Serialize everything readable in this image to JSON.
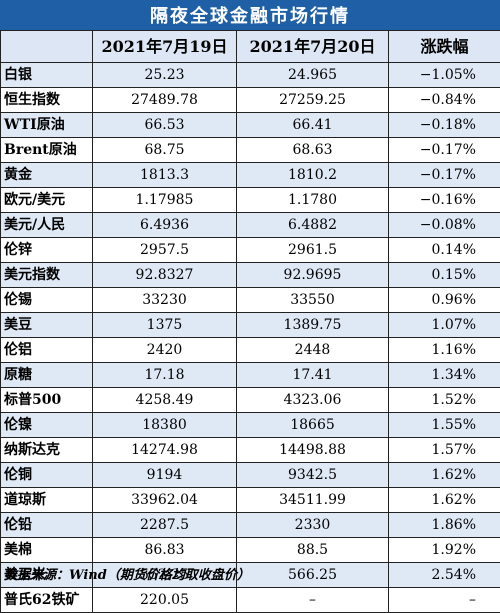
{
  "title": "隔夜全球金融市场行情",
  "columns": [
    "",
    "2021年7月19日",
    "2021年7月20日",
    "涨跌幅"
  ],
  "rows": [
    {
      "name": "白银",
      "d1": "25.23",
      "d2": "24.965",
      "chg": "−1.05%"
    },
    {
      "name": "恒生指数",
      "d1": "27489.78",
      "d2": "27259.25",
      "chg": "−0.84%"
    },
    {
      "name": "WTI原油",
      "d1": "66.53",
      "d2": "66.41",
      "chg": "−0.18%"
    },
    {
      "name": "Brent原油",
      "d1": "68.75",
      "d2": "68.63",
      "chg": "−0.17%"
    },
    {
      "name": "黄金",
      "d1": "1813.3",
      "d2": "1810.2",
      "chg": "−0.17%"
    },
    {
      "name": "欧元/美元",
      "d1": "1.17985",
      "d2": "1.1780",
      "chg": "−0.16%"
    },
    {
      "name": "美元/人民",
      "d1": "6.4936",
      "d2": "6.4882",
      "chg": "−0.08%"
    },
    {
      "name": "伦锌",
      "d1": "2957.5",
      "d2": "2961.5",
      "chg": "0.14%"
    },
    {
      "name": "美元指数",
      "d1": "92.8327",
      "d2": "92.9695",
      "chg": "0.15%"
    },
    {
      "name": "伦锡",
      "d1": "33230",
      "d2": "33550",
      "chg": "0.96%"
    },
    {
      "name": "美豆",
      "d1": "1375",
      "d2": "1389.75",
      "chg": "1.07%"
    },
    {
      "name": "伦铝",
      "d1": "2420",
      "d2": "2448",
      "chg": "1.16%"
    },
    {
      "name": "原糖",
      "d1": "17.18",
      "d2": "17.41",
      "chg": "1.34%"
    },
    {
      "name": "标普500",
      "d1": "4258.49",
      "d2": "4323.06",
      "chg": "1.52%"
    },
    {
      "name": "伦镍",
      "d1": "18380",
      "d2": "18665",
      "chg": "1.55%"
    },
    {
      "name": "纳斯达克",
      "d1": "14274.98",
      "d2": "14498.88",
      "chg": "1.57%"
    },
    {
      "name": "伦铜",
      "d1": "9194",
      "d2": "9342.5",
      "chg": "1.62%"
    },
    {
      "name": "道琼斯",
      "d1": "33962.04",
      "d2": "34511.99",
      "chg": "1.62%"
    },
    {
      "name": "伦铅",
      "d1": "2287.5",
      "d2": "2330",
      "chg": "1.86%"
    },
    {
      "name": "美棉",
      "d1": "86.83",
      "d2": "88.5",
      "chg": "1.92%"
    },
    {
      "name": "美玉米",
      "d1": "552.25",
      "d2": "566.25",
      "chg": "2.54%"
    },
    {
      "name": "普氏62铁矿",
      "d1": "220.05",
      "d2": "–",
      "chg": "–"
    }
  ],
  "footer": "数据来源：Wind（期货价格均取收盘价）"
}
